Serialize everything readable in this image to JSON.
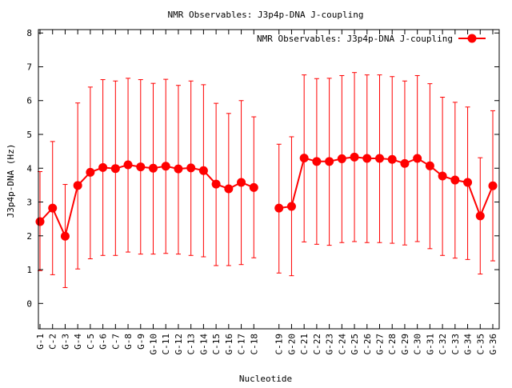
{
  "chart_data": {
    "type": "line",
    "title": "NMR Observables: J3p4p-DNA J-coupling",
    "xlabel": "Nucleotide",
    "ylabel": "J3p4p-DNA (Hz)",
    "ylim": [
      -0.75,
      8.1
    ],
    "yticks": [
      0,
      1,
      2,
      3,
      4,
      5,
      6,
      7,
      8
    ],
    "grid": false,
    "legend_position": "top-right",
    "categories": [
      "G-1",
      "C-2",
      "G-3",
      "G-4",
      "C-5",
      "G-6",
      "C-7",
      "G-8",
      "G-9",
      "G-10",
      "C-11",
      "G-12",
      "C-13",
      "G-14",
      "C-15",
      "G-16",
      "C-17",
      "C-18",
      "C-19",
      "G-20",
      "C-21",
      "C-22",
      "G-23",
      "C-24",
      "G-25",
      "C-26",
      "G-27",
      "C-28",
      "G-29",
      "C-30",
      "G-31",
      "C-32",
      "C-33",
      "G-34",
      "C-35",
      "G-36"
    ],
    "series": [
      {
        "name": "NMR Observables: J3p4p-DNA J-coupling",
        "color": "#ff0000",
        "values": [
          2.42,
          2.82,
          1.99,
          3.49,
          3.88,
          4.02,
          3.99,
          4.1,
          4.04,
          4.0,
          4.06,
          3.98,
          4.01,
          3.93,
          3.53,
          3.39,
          3.58,
          3.43,
          2.82,
          2.87,
          4.3,
          4.2,
          4.2,
          4.28,
          4.33,
          4.29,
          4.29,
          4.26,
          4.14,
          4.29,
          4.07,
          3.77,
          3.65,
          3.58,
          2.59,
          3.48
        ],
        "err_low": [
          0.97,
          0.85,
          0.47,
          1.02,
          1.32,
          1.42,
          1.42,
          1.52,
          1.46,
          1.46,
          1.48,
          1.46,
          1.42,
          1.38,
          1.12,
          1.12,
          1.15,
          1.35,
          0.9,
          0.82,
          1.82,
          1.75,
          1.72,
          1.8,
          1.83,
          1.8,
          1.8,
          1.78,
          1.73,
          1.83,
          1.62,
          1.42,
          1.34,
          1.3,
          0.87,
          1.26
        ],
        "err_high": [
          3.9,
          4.79,
          3.52,
          5.93,
          6.4,
          6.62,
          6.58,
          6.66,
          6.62,
          6.51,
          6.63,
          6.45,
          6.58,
          6.47,
          5.92,
          5.62,
          6.0,
          5.52,
          4.71,
          4.93,
          6.76,
          6.65,
          6.66,
          6.74,
          6.83,
          6.76,
          6.76,
          6.71,
          6.58,
          6.74,
          6.5,
          6.1,
          5.95,
          5.81,
          4.31,
          5.7
        ],
        "segments": [
          [
            0,
            17
          ],
          [
            18,
            35
          ]
        ]
      }
    ]
  }
}
